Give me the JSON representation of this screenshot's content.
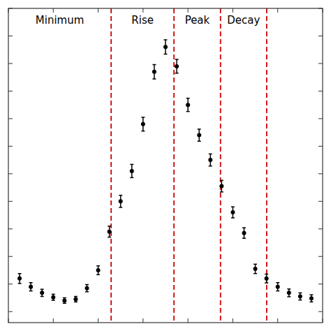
{
  "chart_data": {
    "type": "scatter",
    "x": [
      1,
      2,
      3,
      4,
      5,
      6,
      7,
      8,
      9,
      10,
      11,
      12,
      13,
      14,
      15,
      16,
      17,
      18,
      19,
      20,
      21,
      22,
      23,
      24,
      25,
      26,
      27
    ],
    "values": [
      0.12,
      0.09,
      0.068,
      0.052,
      0.04,
      0.045,
      0.085,
      0.15,
      0.29,
      0.4,
      0.51,
      0.68,
      0.87,
      0.96,
      0.89,
      0.75,
      0.64,
      0.55,
      0.455,
      0.36,
      0.285,
      0.155,
      0.12,
      0.09,
      0.068,
      0.055,
      0.048
    ],
    "errors": [
      0.018,
      0.015,
      0.013,
      0.011,
      0.01,
      0.01,
      0.013,
      0.016,
      0.02,
      0.022,
      0.024,
      0.025,
      0.026,
      0.026,
      0.025,
      0.024,
      0.022,
      0.022,
      0.021,
      0.02,
      0.019,
      0.017,
      0.016,
      0.015,
      0.014,
      0.013,
      0.013
    ],
    "color": "black",
    "marker": "circle",
    "reference_lines": {
      "x": [
        9.156,
        14.756,
        18.9,
        23.016
      ],
      "color": "#cc0000",
      "line_style": "dashed"
    },
    "annotations": [
      "Minimum",
      "Rise",
      "Peak",
      "Decay"
    ],
    "xlim": [
      0,
      28
    ],
    "ylim": [
      -0.04,
      1.1
    ],
    "xticks": [
      0,
      4,
      8,
      12,
      16,
      20,
      24,
      28
    ],
    "yticks": [
      0,
      0.1,
      0.2,
      0.3,
      0.4,
      0.5,
      0.6,
      0.7,
      0.8,
      0.9,
      1.0,
      1.1
    ],
    "tick_labels": false,
    "grid": false
  }
}
